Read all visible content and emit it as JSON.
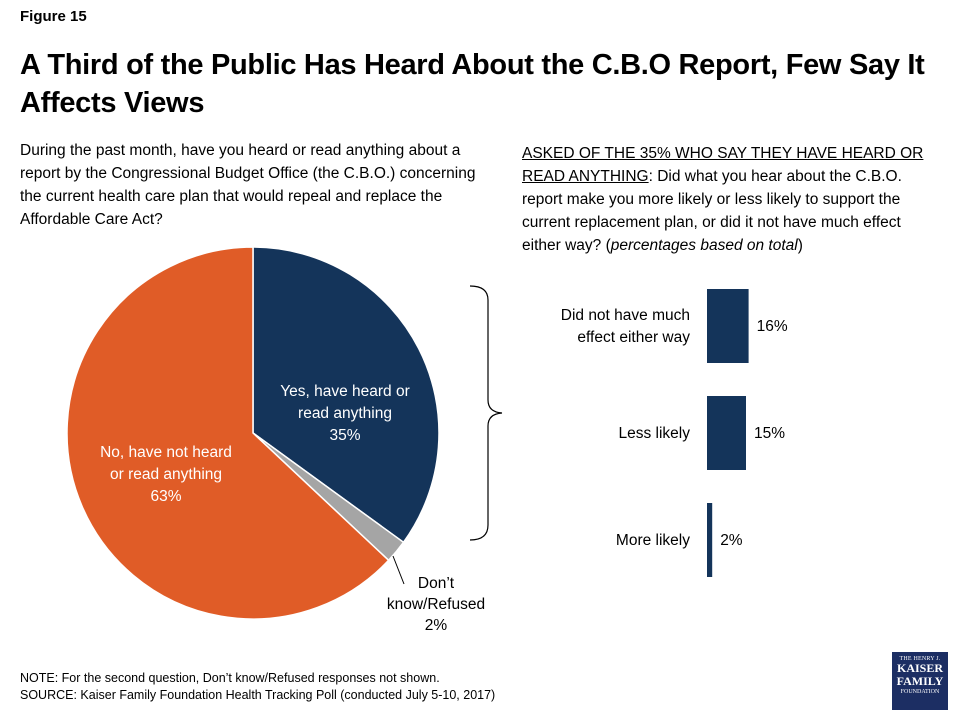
{
  "figure_label": "Figure 15",
  "title": "A Third of the Public Has Heard About the C.B.O Report, Few Say It Affects Views",
  "question1": "During the past month, have you heard or read anything about a report by the Congressional Budget Office (the C.B.O.) concerning the current health care plan that would repeal and replace the Affordable Care Act?",
  "question2": {
    "prefix": "ASKED OF THE 35% WHO SAY THEY HAVE HEARD OR READ ANYTHING",
    "body": ": Did what you hear about the C.B.O. report make you more likely or less likely to support the current replacement plan, or did it not have much effect either way? (",
    "italic": "percentages based on total",
    "suffix": ")"
  },
  "colors": {
    "navy": "#14345a",
    "orange": "#e05c27",
    "gray": "#a5a5a5"
  },
  "chart_data": [
    {
      "type": "pie",
      "slices": [
        {
          "label": "Yes, have heard or read anything",
          "value": 35,
          "value_label": "35%",
          "color": "#14345a"
        },
        {
          "label": "Don’t know/Refused",
          "value": 2,
          "value_label": "2%",
          "color": "#a5a5a5"
        },
        {
          "label": "No, have not heard or read anything",
          "value": 63,
          "value_label": "63%",
          "color": "#e05c27"
        }
      ]
    },
    {
      "type": "bar",
      "orientation": "horizontal",
      "categories": [
        "Did not have much effect either way",
        "Less likely",
        "More likely"
      ],
      "values": [
        16,
        15,
        2
      ],
      "value_labels": [
        "16%",
        "15%",
        "2%"
      ],
      "color": "#14345a"
    }
  ],
  "notes": {
    "note": "NOTE: For the second question, Don’t know/Refused responses not shown.",
    "source": "SOURCE: Kaiser Family Foundation Health Tracking Poll (conducted July 5-10, 2017)"
  },
  "logo": {
    "line1": "THE HENRY J.",
    "line2": "KAISER",
    "line3": "FAMILY",
    "line4": "FOUNDATION"
  }
}
